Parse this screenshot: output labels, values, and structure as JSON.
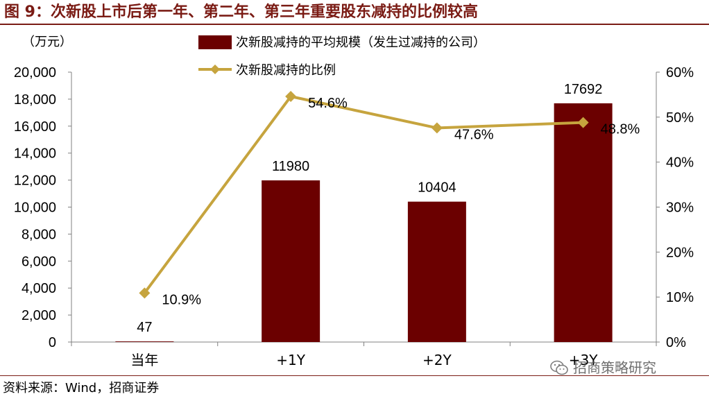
{
  "figure": {
    "title": "图 9：次新股上市后第一年、第二年、第三年重要股东减持的比例较高",
    "source": "资料来源：Wind，招商证券",
    "watermark": "招商策略研究",
    "colors": {
      "title": "#7a1b14",
      "bar": "#6b0000",
      "line": "#c6a43e"
    }
  },
  "chart_data": {
    "type": "bar",
    "unit_label": "（万元）",
    "categories": [
      "当年",
      "+1Y",
      "+2Y",
      "+3Y"
    ],
    "series": [
      {
        "name": "次新股减持的平均规模（发生过减持的公司）",
        "type": "bar",
        "axis": "left",
        "values": [
          47,
          11980,
          10404,
          17692
        ],
        "labels": [
          "47",
          "11980",
          "10404",
          "17692"
        ]
      },
      {
        "name": "次新股减持的比例",
        "type": "line",
        "axis": "right",
        "values": [
          10.9,
          54.6,
          47.6,
          48.8
        ],
        "labels": [
          "10.9%",
          "54.6%",
          "47.6%",
          "48.8%"
        ]
      }
    ],
    "y_left": {
      "range": [
        0,
        20000
      ],
      "ticks": [
        "0",
        "2,000",
        "4,000",
        "6,000",
        "8,000",
        "10,000",
        "12,000",
        "14,000",
        "16,000",
        "18,000",
        "20,000"
      ]
    },
    "y_right": {
      "range": [
        0,
        60
      ],
      "ticks": [
        "0%",
        "10%",
        "20%",
        "30%",
        "40%",
        "50%",
        "60%"
      ]
    },
    "legend_position": "top-center",
    "grid": false
  }
}
